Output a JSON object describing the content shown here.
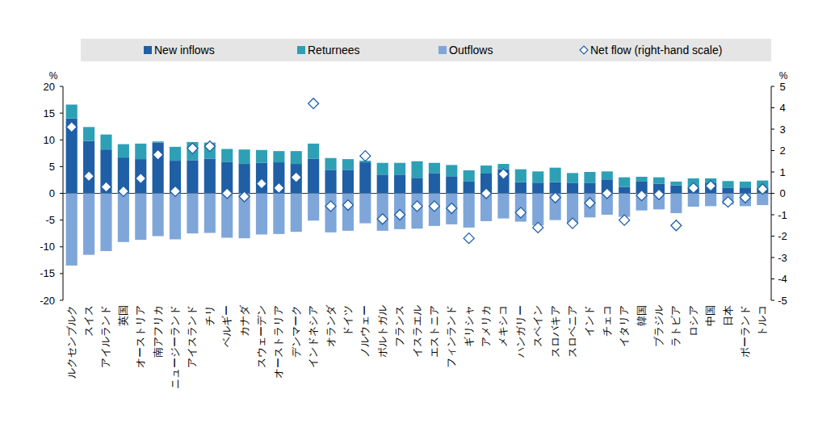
{
  "chart_data": {
    "type": "bar",
    "stacked": true,
    "legend": "top",
    "grid": false,
    "y_label": "%",
    "y2_label": "%",
    "categories": [
      "ルクセンブルク",
      "スイス",
      "アイルランド",
      "英国",
      "オーストリア",
      "南アフリカ",
      "ニュージーランド",
      "アイスランド",
      "チリ",
      "ベルギー",
      "カナダ",
      "スウェーデン",
      "オーストラリア",
      "デンマーク",
      "インドネシア",
      "オランダ",
      "ドイツ",
      "ノルウェー",
      "ポルトガル",
      "フランス",
      "イスラエル",
      "エストニア",
      "フィンランド",
      "ギリシャ",
      "アメリカ",
      "メキシコ",
      "ハンガリー",
      "スペイン",
      "スロバキア",
      "スロベニア",
      "インド",
      "チェコ",
      "イタリア",
      "韓国",
      "ブラジル",
      "ラトビア",
      "ロシア",
      "中国",
      "日本",
      "ポーランド",
      "トルコ"
    ],
    "ylim": [
      -20,
      20
    ],
    "yticks": [
      -20,
      -15,
      -10,
      -5,
      0,
      5,
      10,
      15,
      20
    ],
    "y2lim": [
      -5,
      5
    ],
    "y2ticks": [
      -5,
      -4,
      -3,
      -2,
      -1,
      0,
      1,
      2,
      3,
      4,
      5
    ],
    "series": [
      {
        "name": "New inflows",
        "type": "bar",
        "color": "#1f5fa6",
        "values": [
          14,
          9.8,
          8.2,
          6.7,
          6.4,
          9.5,
          6.1,
          6.2,
          6.5,
          5.9,
          5.5,
          5.7,
          5.8,
          5.5,
          6.5,
          4.4,
          4.4,
          5.8,
          3.5,
          3.5,
          2.9,
          3.8,
          3.2,
          2.2,
          3.7,
          4.5,
          2.1,
          2.0,
          2.1,
          1.9,
          1.9,
          2.6,
          1.2,
          2.2,
          1.8,
          1.5,
          1.2,
          2.0,
          1.0,
          1.1,
          1.0
        ]
      },
      {
        "name": "Returnees",
        "type": "bar",
        "color": "#2ea0b6",
        "values": [
          2.6,
          2.6,
          2.8,
          2.5,
          2.9,
          0.2,
          2.6,
          3.4,
          3.0,
          2.4,
          2.7,
          2.4,
          2.1,
          2.4,
          2.8,
          2.2,
          2.0,
          0.3,
          2.2,
          2.2,
          3.1,
          1.9,
          2.1,
          2.1,
          1.5,
          1.0,
          2.4,
          2.1,
          2.7,
          1.9,
          2.1,
          1.5,
          1.8,
          0.9,
          1.2,
          0.7,
          1.6,
          0.8,
          1.3,
          1.1,
          1.4
        ]
      },
      {
        "name": "Outflows",
        "type": "bar",
        "color": "#7fa6d9",
        "values": [
          -13.5,
          -11.5,
          -10.8,
          -9.1,
          -8.7,
          -8.0,
          -8.6,
          -7.5,
          -7.4,
          -8.3,
          -8.4,
          -7.7,
          -7.6,
          -7.2,
          -5.1,
          -7.3,
          -7.0,
          -5.6,
          -7.0,
          -6.7,
          -6.6,
          -6.1,
          -5.8,
          -6.4,
          -5.2,
          -4.7,
          -5.3,
          -6.0,
          -5.0,
          -5.7,
          -4.5,
          -4.0,
          -4.4,
          -3.2,
          -3.0,
          -3.7,
          -2.5,
          -2.4,
          -2.1,
          -2.4,
          -2.2
        ]
      },
      {
        "name": "Net flow (right-hand scale)",
        "type": "scatter",
        "axis": "y2",
        "marker": "diamond",
        "color": "#1f5fa6",
        "values": [
          3.1,
          0.8,
          0.3,
          0.1,
          0.7,
          1.8,
          0.1,
          2.1,
          2.2,
          0.0,
          -0.15,
          0.45,
          0.25,
          0.75,
          4.2,
          -0.6,
          -0.55,
          1.75,
          -1.2,
          -1.0,
          -0.6,
          -0.6,
          -0.7,
          -2.1,
          0.0,
          0.9,
          -0.9,
          -1.6,
          -0.2,
          -1.4,
          -0.45,
          0.0,
          -1.25,
          -0.1,
          -0.05,
          -1.5,
          0.25,
          0.35,
          -0.4,
          -0.2,
          0.2
        ]
      }
    ]
  }
}
